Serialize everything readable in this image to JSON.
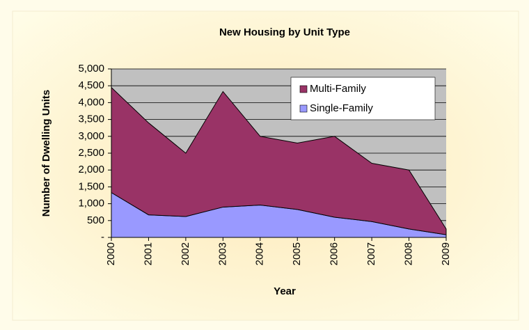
{
  "chart_data": {
    "type": "stacked_area",
    "title": "New Housing by Unit Type",
    "xlabel": "Year",
    "ylabel": "Number of Dwelling Units",
    "categories": [
      "2000",
      "2001",
      "2002",
      "2003",
      "2004",
      "2005",
      "2006",
      "2007",
      "2008",
      "2009"
    ],
    "series": [
      {
        "name": "Single-Family",
        "color": "#9999ff",
        "values": [
          1330,
          670,
          620,
          900,
          960,
          830,
          600,
          470,
          250,
          80
        ]
      },
      {
        "name": "Multi-Family",
        "color": "#993366",
        "values": [
          3120,
          2730,
          1880,
          3430,
          2040,
          1970,
          2400,
          1730,
          1750,
          170
        ]
      }
    ],
    "ylim": [
      0,
      5000
    ],
    "yticks": [
      {
        "value": 0,
        "label": "-"
      },
      500,
      {
        "value": 1000,
        "label": "1,000"
      },
      {
        "value": 1500,
        "label": "1,500"
      },
      {
        "value": 2000,
        "label": "2,000"
      },
      {
        "value": 2500,
        "label": "2,500"
      },
      {
        "value": 3000,
        "label": "3,000"
      },
      {
        "value": 3500,
        "label": "3,500"
      },
      {
        "value": 4000,
        "label": "4,000"
      },
      {
        "value": 4500,
        "label": "4,500"
      },
      {
        "value": 5000,
        "label": "5,000"
      }
    ],
    "grid": true,
    "legend": "upper right"
  }
}
